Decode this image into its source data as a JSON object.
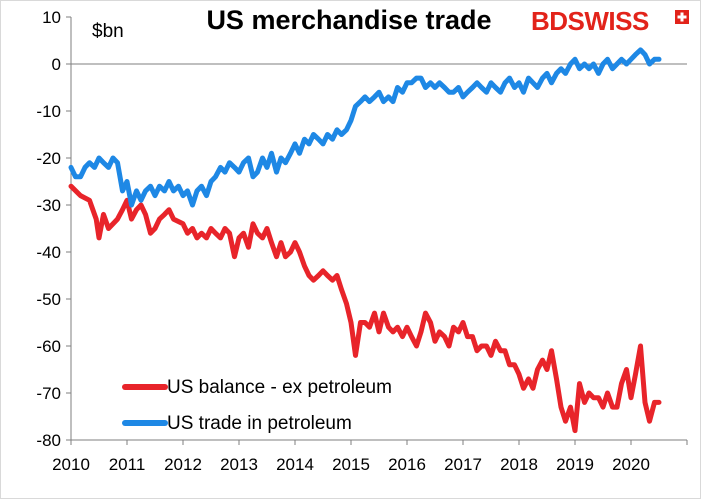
{
  "chart_data": {
    "type": "line",
    "title": "US merchandise trade",
    "ylabel": "$bn",
    "ylim": [
      -80,
      10
    ],
    "yticks": [
      10,
      0,
      -10,
      -20,
      -30,
      -40,
      -50,
      -60,
      -70,
      -80
    ],
    "xlim": [
      2010,
      2021
    ],
    "xticks": [
      "2010",
      "2011",
      "2012",
      "2013",
      "2014",
      "2015",
      "2016",
      "2017",
      "2018",
      "2019",
      "2020"
    ],
    "grid": false,
    "legend_position": "bottom-left",
    "series": [
      {
        "name": "US balance - ex petroleum",
        "color": "#e8242a",
        "points": [
          [
            2010.0,
            -26
          ],
          [
            2010.17,
            -28
          ],
          [
            2010.33,
            -29
          ],
          [
            2010.45,
            -33
          ],
          [
            2010.5,
            -37
          ],
          [
            2010.58,
            -32
          ],
          [
            2010.67,
            -35
          ],
          [
            2010.83,
            -33
          ],
          [
            2010.92,
            -31
          ],
          [
            2011.0,
            -29
          ],
          [
            2011.08,
            -33
          ],
          [
            2011.17,
            -31
          ],
          [
            2011.25,
            -30
          ],
          [
            2011.33,
            -32
          ],
          [
            2011.42,
            -36
          ],
          [
            2011.5,
            -35
          ],
          [
            2011.58,
            -33
          ],
          [
            2011.67,
            -32
          ],
          [
            2011.75,
            -31
          ],
          [
            2011.83,
            -33
          ],
          [
            2012.0,
            -34
          ],
          [
            2012.08,
            -36
          ],
          [
            2012.17,
            -35
          ],
          [
            2012.25,
            -37
          ],
          [
            2012.33,
            -36
          ],
          [
            2012.42,
            -37
          ],
          [
            2012.5,
            -35
          ],
          [
            2012.58,
            -36
          ],
          [
            2012.67,
            -37
          ],
          [
            2012.75,
            -35
          ],
          [
            2012.83,
            -36
          ],
          [
            2012.92,
            -41
          ],
          [
            2013.0,
            -37
          ],
          [
            2013.08,
            -36
          ],
          [
            2013.17,
            -39
          ],
          [
            2013.25,
            -34
          ],
          [
            2013.33,
            -36
          ],
          [
            2013.42,
            -37
          ],
          [
            2013.5,
            -35
          ],
          [
            2013.58,
            -38
          ],
          [
            2013.67,
            -41
          ],
          [
            2013.75,
            -38
          ],
          [
            2013.83,
            -41
          ],
          [
            2013.92,
            -40
          ],
          [
            2014.0,
            -38
          ],
          [
            2014.08,
            -40
          ],
          [
            2014.17,
            -43
          ],
          [
            2014.25,
            -45
          ],
          [
            2014.33,
            -46
          ],
          [
            2014.42,
            -45
          ],
          [
            2014.5,
            -44
          ],
          [
            2014.58,
            -45
          ],
          [
            2014.67,
            -46
          ],
          [
            2014.75,
            -45
          ],
          [
            2014.83,
            -48
          ],
          [
            2014.92,
            -51
          ],
          [
            2015.0,
            -55
          ],
          [
            2015.08,
            -62
          ],
          [
            2015.17,
            -55
          ],
          [
            2015.25,
            -55
          ],
          [
            2015.33,
            -56
          ],
          [
            2015.42,
            -53
          ],
          [
            2015.5,
            -57
          ],
          [
            2015.58,
            -53
          ],
          [
            2015.67,
            -56
          ],
          [
            2015.75,
            -57
          ],
          [
            2015.83,
            -56
          ],
          [
            2015.92,
            -58
          ],
          [
            2016.0,
            -56
          ],
          [
            2016.08,
            -58
          ],
          [
            2016.17,
            -60
          ],
          [
            2016.25,
            -57
          ],
          [
            2016.33,
            -53
          ],
          [
            2016.42,
            -55
          ],
          [
            2016.5,
            -59
          ],
          [
            2016.58,
            -57
          ],
          [
            2016.67,
            -58
          ],
          [
            2016.75,
            -60
          ],
          [
            2016.83,
            -56
          ],
          [
            2016.92,
            -57
          ],
          [
            2017.0,
            -55
          ],
          [
            2017.08,
            -58
          ],
          [
            2017.17,
            -58
          ],
          [
            2017.25,
            -61
          ],
          [
            2017.33,
            -60
          ],
          [
            2017.42,
            -60
          ],
          [
            2017.5,
            -62
          ],
          [
            2017.58,
            -59
          ],
          [
            2017.67,
            -61
          ],
          [
            2017.75,
            -61
          ],
          [
            2017.83,
            -64
          ],
          [
            2017.92,
            -64
          ],
          [
            2018.0,
            -66
          ],
          [
            2018.08,
            -69
          ],
          [
            2018.17,
            -67
          ],
          [
            2018.25,
            -69
          ],
          [
            2018.33,
            -65
          ],
          [
            2018.42,
            -63
          ],
          [
            2018.5,
            -65
          ],
          [
            2018.58,
            -61
          ],
          [
            2018.67,
            -67
          ],
          [
            2018.75,
            -73
          ],
          [
            2018.83,
            -76
          ],
          [
            2018.92,
            -73
          ],
          [
            2019.0,
            -78
          ],
          [
            2019.08,
            -68
          ],
          [
            2019.17,
            -72
          ],
          [
            2019.25,
            -70
          ],
          [
            2019.33,
            -71
          ],
          [
            2019.42,
            -71
          ],
          [
            2019.5,
            -73
          ],
          [
            2019.58,
            -70
          ],
          [
            2019.67,
            -73
          ],
          [
            2019.75,
            -73
          ],
          [
            2019.83,
            -68
          ],
          [
            2019.92,
            -65
          ],
          [
            2020.0,
            -71
          ],
          [
            2020.08,
            -66
          ],
          [
            2020.17,
            -60
          ],
          [
            2020.25,
            -72
          ],
          [
            2020.33,
            -76
          ],
          [
            2020.42,
            -72
          ],
          [
            2020.5,
            -72
          ]
        ]
      },
      {
        "name": "US trade in petroleum",
        "color": "#1e88e5",
        "points": [
          [
            2010.0,
            -22
          ],
          [
            2010.08,
            -24
          ],
          [
            2010.17,
            -24
          ],
          [
            2010.25,
            -22
          ],
          [
            2010.33,
            -21
          ],
          [
            2010.42,
            -22
          ],
          [
            2010.5,
            -20
          ],
          [
            2010.58,
            -21
          ],
          [
            2010.67,
            -22
          ],
          [
            2010.75,
            -20
          ],
          [
            2010.83,
            -21
          ],
          [
            2010.92,
            -27
          ],
          [
            2011.0,
            -25
          ],
          [
            2011.08,
            -30
          ],
          [
            2011.17,
            -27
          ],
          [
            2011.25,
            -29
          ],
          [
            2011.33,
            -27
          ],
          [
            2011.42,
            -26
          ],
          [
            2011.5,
            -28
          ],
          [
            2011.58,
            -26
          ],
          [
            2011.67,
            -27
          ],
          [
            2011.75,
            -25
          ],
          [
            2011.83,
            -27
          ],
          [
            2011.92,
            -26
          ],
          [
            2012.0,
            -28
          ],
          [
            2012.08,
            -27
          ],
          [
            2012.17,
            -30
          ],
          [
            2012.25,
            -27
          ],
          [
            2012.33,
            -26
          ],
          [
            2012.42,
            -28
          ],
          [
            2012.5,
            -25
          ],
          [
            2012.58,
            -24
          ],
          [
            2012.67,
            -22
          ],
          [
            2012.75,
            -23
          ],
          [
            2012.83,
            -21
          ],
          [
            2012.92,
            -22
          ],
          [
            2013.0,
            -23
          ],
          [
            2013.08,
            -21
          ],
          [
            2013.17,
            -20
          ],
          [
            2013.25,
            -24
          ],
          [
            2013.33,
            -23
          ],
          [
            2013.42,
            -20
          ],
          [
            2013.5,
            -22
          ],
          [
            2013.58,
            -19
          ],
          [
            2013.67,
            -23
          ],
          [
            2013.75,
            -20
          ],
          [
            2013.83,
            -21
          ],
          [
            2013.92,
            -19
          ],
          [
            2014.0,
            -17
          ],
          [
            2014.08,
            -19
          ],
          [
            2014.17,
            -16
          ],
          [
            2014.25,
            -17
          ],
          [
            2014.33,
            -15
          ],
          [
            2014.42,
            -16
          ],
          [
            2014.5,
            -17
          ],
          [
            2014.58,
            -15
          ],
          [
            2014.67,
            -16
          ],
          [
            2014.75,
            -14
          ],
          [
            2014.83,
            -15
          ],
          [
            2014.92,
            -14
          ],
          [
            2015.0,
            -12
          ],
          [
            2015.08,
            -9
          ],
          [
            2015.17,
            -8
          ],
          [
            2015.25,
            -7
          ],
          [
            2015.33,
            -8
          ],
          [
            2015.42,
            -7
          ],
          [
            2015.5,
            -6
          ],
          [
            2015.58,
            -8
          ],
          [
            2015.67,
            -7
          ],
          [
            2015.75,
            -8
          ],
          [
            2015.83,
            -5
          ],
          [
            2015.92,
            -6
          ],
          [
            2016.0,
            -4
          ],
          [
            2016.08,
            -4
          ],
          [
            2016.17,
            -3
          ],
          [
            2016.25,
            -3
          ],
          [
            2016.33,
            -5
          ],
          [
            2016.42,
            -4
          ],
          [
            2016.5,
            -5
          ],
          [
            2016.58,
            -4
          ],
          [
            2016.67,
            -5
          ],
          [
            2016.75,
            -6
          ],
          [
            2016.83,
            -6
          ],
          [
            2016.92,
            -5
          ],
          [
            2017.0,
            -7
          ],
          [
            2017.08,
            -6
          ],
          [
            2017.17,
            -5
          ],
          [
            2017.25,
            -4
          ],
          [
            2017.33,
            -5
          ],
          [
            2017.42,
            -6
          ],
          [
            2017.5,
            -4
          ],
          [
            2017.58,
            -5
          ],
          [
            2017.67,
            -6
          ],
          [
            2017.75,
            -4
          ],
          [
            2017.83,
            -3
          ],
          [
            2017.92,
            -5
          ],
          [
            2018.0,
            -4
          ],
          [
            2018.08,
            -6
          ],
          [
            2018.17,
            -3
          ],
          [
            2018.25,
            -4
          ],
          [
            2018.33,
            -5
          ],
          [
            2018.42,
            -3
          ],
          [
            2018.5,
            -2
          ],
          [
            2018.58,
            -4
          ],
          [
            2018.67,
            -2
          ],
          [
            2018.75,
            -1
          ],
          [
            2018.83,
            -2
          ],
          [
            2018.92,
            0
          ],
          [
            2019.0,
            1
          ],
          [
            2019.08,
            -1
          ],
          [
            2019.17,
            0
          ],
          [
            2019.25,
            -1
          ],
          [
            2019.33,
            0
          ],
          [
            2019.42,
            -2
          ],
          [
            2019.5,
            0
          ],
          [
            2019.58,
            1
          ],
          [
            2019.67,
            -1
          ],
          [
            2019.75,
            0
          ],
          [
            2019.83,
            1
          ],
          [
            2019.92,
            0
          ],
          [
            2020.0,
            1
          ],
          [
            2020.08,
            2
          ],
          [
            2020.17,
            3
          ],
          [
            2020.25,
            2
          ],
          [
            2020.33,
            0
          ],
          [
            2020.42,
            1
          ],
          [
            2020.5,
            1
          ]
        ]
      }
    ]
  },
  "logo": {
    "text": "BDSWISS",
    "color": "#e2231a"
  }
}
